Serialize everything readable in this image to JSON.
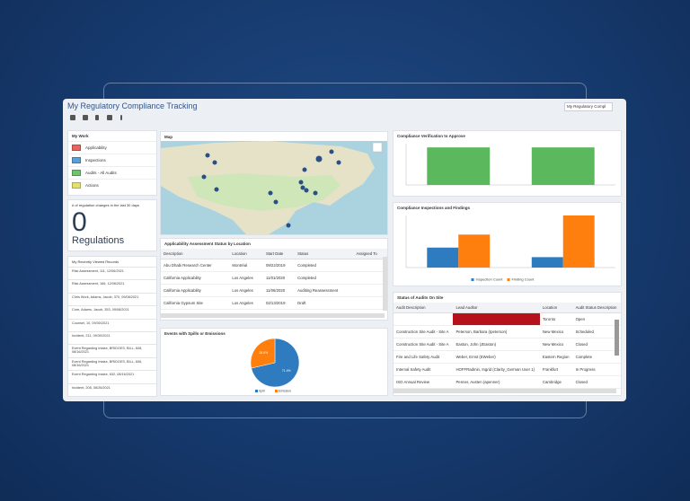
{
  "header": {
    "title": "My Regulatory Compliance Tracking",
    "search": "My Regulatory Compl"
  },
  "my_work": {
    "title": "My Work",
    "items": [
      {
        "label": "Applicability",
        "color": "#e8655a"
      },
      {
        "label": "Inspections",
        "color": "#5aa0d8"
      },
      {
        "label": "Audits - All Audits",
        "color": "#6cc46c"
      },
      {
        "label": "Actions",
        "color": "#e3e36a"
      }
    ]
  },
  "regulation_changes": {
    "title": "# of regulation changes in the last 30 days",
    "count": 0,
    "unit": "Regulations"
  },
  "recent": {
    "title": "My Recently Viewed Records",
    "items": [
      "Risk Assessment, 111, 12/06/2021",
      "Risk Assessment, 166, 12/06/2021",
      "Chris Work, Adams, Jacob, 370, 09/08/2021",
      "Core, Adams, Jacob, 353, 09/08/2021",
      "Counsel, 10, 09/30/2021",
      "Incident, 211, 09/30/2021",
      "Event Regarding Intake, BRIDGES, BILL, 608, 08/16/2021",
      "Event Regarding Intake, BRIDGES, BILL, 606, 08/16/2021",
      "Event Regarding Intake, 632, 08/16/2021",
      "Incident, 208, 08/26/2021"
    ]
  },
  "map": {
    "title": "Map"
  },
  "applicability": {
    "title": "Applicability Assessment Status by Location",
    "columns": [
      "Description",
      "Location",
      "Start Date",
      "Status",
      "Assigned To"
    ],
    "rows": [
      [
        "Abu Dhabi Research Center",
        "Montréal",
        "09/22/2019",
        "Completed",
        null
      ],
      [
        "California Applicability",
        "Los Angeles",
        "11/01/2020",
        "Completed",
        null
      ],
      [
        "California Applicability",
        "Los Angeles",
        "11/06/2020",
        "Auditing Reassessment",
        null
      ],
      [
        "California Gypsum Site",
        "Los Angeles",
        "02/13/2019",
        "Draft",
        null
      ]
    ]
  },
  "audits": {
    "title": "Status of Audits On Site",
    "columns": [
      "Audit Description",
      "Lead Auditor",
      "Location",
      "Audit Status Description"
    ],
    "rows": [
      [
        null,
        null,
        "Toronto",
        "Open"
      ],
      [
        "Construction Site Audit - Site A",
        "Peterson, Barbara (Ipeterson)",
        "New Mexico",
        "Scheduled"
      ],
      [
        "Construction Site Audit - Site A",
        "Easton, John (JEaston)",
        "New Mexico",
        "Closed"
      ],
      [
        "Fire and Life Safety Audit",
        "Weber, Ernst (EWeber)",
        "Eastern Region",
        "Complete"
      ],
      [
        "Internal Safety Audit",
        "HOFFRadmin, Ingrid (Clarity_German User 1)",
        "Frankfurt",
        "In Progress"
      ],
      [
        "ISO Annual Review",
        "Penner, Austen (apenner)",
        "Cambridge",
        "Closed"
      ]
    ]
  },
  "chart_data": [
    {
      "type": "bar",
      "title": "Compliance Verification to Approve",
      "categories": [
        null,
        null
      ],
      "values": [
        2,
        2
      ],
      "color": "#5cb85c",
      "ylim": [
        0,
        2.2
      ]
    },
    {
      "type": "bar",
      "title": "Compliance Inspections and Findings",
      "categories": [
        null,
        null
      ],
      "series": [
        {
          "name": "Inspection Count",
          "color": "#2e7bbf",
          "values": [
            2.3,
            1.2
          ]
        },
        {
          "name": "Finding Count",
          "color": "#ff7f0e",
          "values": [
            3.8,
            6
          ]
        }
      ],
      "ylim": [
        0,
        6
      ]
    },
    {
      "type": "pie",
      "title": "Events with Spills or Emissions",
      "categories": [
        "Spill",
        "Emission"
      ],
      "values": [
        71.4,
        28.6
      ],
      "value_labels": [
        "71.4%",
        "28.6%"
      ],
      "colors": [
        "#2e7bbf",
        "#ff7f0e"
      ]
    }
  ]
}
